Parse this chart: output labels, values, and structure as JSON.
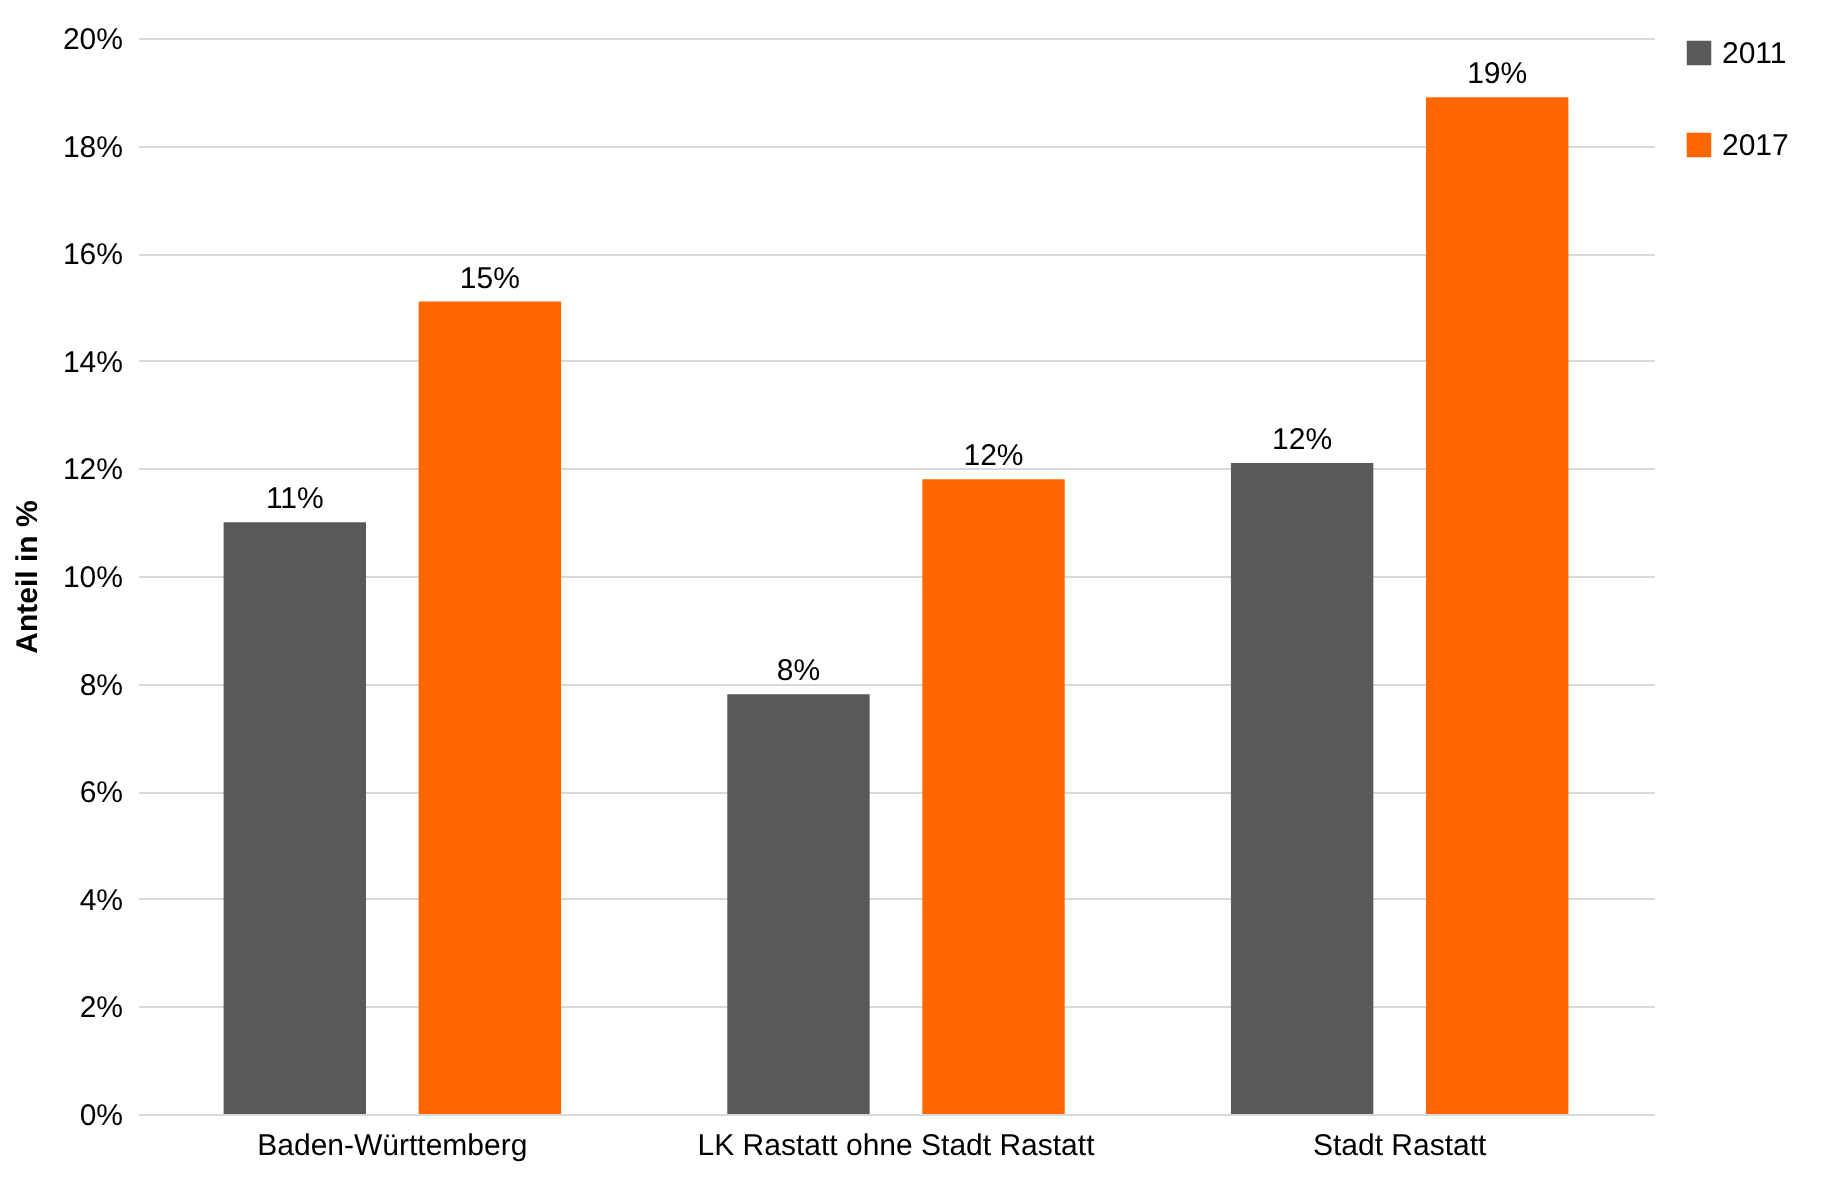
{
  "chart_data": {
    "type": "bar",
    "ylabel": "Anteil in %",
    "categories": [
      "Baden-Württemberg",
      "LK Rastatt ohne Stadt Rastatt",
      "Stadt Rastatt"
    ],
    "series": [
      {
        "name": "2011",
        "color": "#595959",
        "values": [
          11.0,
          7.8,
          12.1
        ],
        "value_labels": [
          "11%",
          "8%",
          "12%"
        ]
      },
      {
        "name": "2017",
        "color": "#ff6600",
        "values": [
          15.1,
          11.8,
          18.9
        ],
        "value_labels": [
          "15%",
          "12%",
          "19%"
        ]
      }
    ],
    "ylim": [
      0,
      20
    ],
    "yticks": [
      {
        "value": 0,
        "label": "0%"
      },
      {
        "value": 2,
        "label": "2%"
      },
      {
        "value": 4,
        "label": "4%"
      },
      {
        "value": 6,
        "label": "6%"
      },
      {
        "value": 8,
        "label": "8%"
      },
      {
        "value": 10,
        "label": "10%"
      },
      {
        "value": 12,
        "label": "12%"
      },
      {
        "value": 14,
        "label": "14%"
      },
      {
        "value": 16,
        "label": "16%"
      },
      {
        "value": 18,
        "label": "18%"
      },
      {
        "value": 20,
        "label": "20%"
      }
    ],
    "grid": "y",
    "legend": "right"
  }
}
